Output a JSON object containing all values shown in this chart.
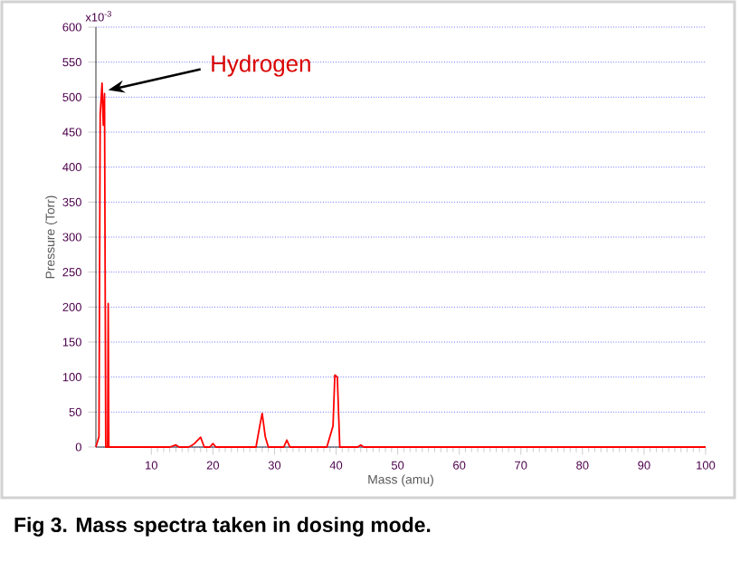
{
  "chart_data": {
    "type": "line",
    "xlabel": "Mass (amu)",
    "ylabel": "Pressure (Torr)",
    "x": [
      1,
      1.5,
      1.7,
      2,
      2.2,
      2.4,
      2.6,
      2.9,
      3,
      3.1,
      13,
      14,
      14.5,
      16,
      16.5,
      17,
      18,
      18.6,
      19.5,
      20,
      20.5,
      27,
      27.6,
      28,
      28.5,
      29,
      31.5,
      32,
      32.5,
      38.5,
      39.5,
      39.8,
      40.2,
      40.6,
      43.5,
      44,
      44.5,
      100
    ],
    "series": [
      {
        "color": "#ff0000",
        "values": [
          0,
          15,
          475,
          520,
          460,
          505,
          0,
          0,
          205,
          0,
          0,
          3,
          0,
          0,
          2,
          5,
          14,
          0,
          0,
          5,
          0,
          0,
          30,
          48,
          15,
          0,
          0,
          10,
          0,
          0,
          30,
          103,
          100,
          0,
          0,
          3,
          0,
          0
        ]
      }
    ],
    "xlim": [
      1,
      100
    ],
    "xticks": [
      10,
      20,
      30,
      40,
      50,
      60,
      70,
      80,
      90,
      100
    ],
    "ylim": [
      0,
      600
    ],
    "yticks": [
      0,
      50,
      100,
      150,
      200,
      250,
      300,
      350,
      400,
      450,
      500,
      550,
      600
    ],
    "grid": "y",
    "marker": "none",
    "line_style": "solid",
    "annotations": [
      {
        "text": "Hydrogen",
        "x": 2,
        "y": 510
      },
      "Fig 3. Mass spectra taken in dosing mode.",
      "x10$^{-3}$"
    ]
  }
}
